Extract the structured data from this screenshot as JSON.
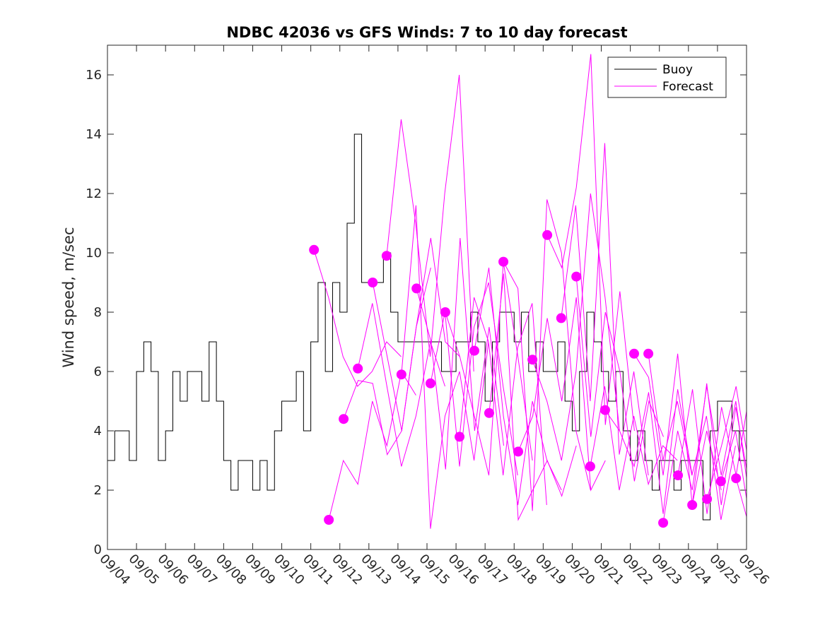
{
  "chart_data": {
    "type": "line",
    "title": "NDBC 42036 vs GFS Winds: 7 to 10 day forecast",
    "xlabel": "",
    "ylabel": "Wind speed, m/sec",
    "x_units": "days since 09/04 00:00",
    "xlim": [
      0,
      22
    ],
    "ylim": [
      0,
      17
    ],
    "yticks": [
      0,
      2,
      4,
      6,
      8,
      10,
      12,
      14,
      16
    ],
    "xtick_labels": [
      "09/04",
      "09/05",
      "09/06",
      "09/07",
      "09/08",
      "09/09",
      "09/10",
      "09/11",
      "09/12",
      "09/13",
      "09/14",
      "09/15",
      "09/16",
      "09/17",
      "09/18",
      "09/19",
      "09/20",
      "09/21",
      "09/22",
      "09/23",
      "09/24",
      "09/25",
      "09/26"
    ],
    "legend": {
      "position": "top-right",
      "entries": [
        "Buoy",
        "Forecast"
      ]
    },
    "colors": {
      "buoy": "#000000",
      "forecast": "#ff00ff"
    },
    "buoy": {
      "step": 0.25,
      "values": [
        3,
        4,
        4,
        3,
        6,
        7,
        6,
        3,
        4,
        6,
        5,
        6,
        6,
        5,
        7,
        5,
        3,
        2,
        3,
        3,
        2,
        3,
        2,
        4,
        5,
        5,
        6,
        4,
        7,
        9,
        6,
        9,
        8,
        11,
        14,
        9,
        9,
        9,
        10,
        8,
        7,
        7,
        7,
        7,
        7,
        7,
        6,
        6,
        7,
        7,
        8,
        7,
        5,
        7,
        8,
        8,
        7,
        8,
        6,
        7,
        6,
        6,
        7,
        5,
        4,
        6,
        8,
        7,
        6,
        5,
        6,
        4,
        3,
        4,
        3,
        2,
        3,
        3,
        2,
        3,
        3,
        3,
        1,
        4,
        5,
        5,
        4,
        3,
        5,
        5,
        3,
        4,
        3,
        2,
        2,
        2,
        1,
        2,
        1,
        2,
        2,
        3,
        2,
        2
      ]
    },
    "forecast_step": 0.5,
    "forecasts": [
      {
        "start": 7.11,
        "values": [
          10.1,
          8.5,
          6.5,
          5.5,
          6.0,
          7.0,
          6.5
        ]
      },
      {
        "start": 7.62,
        "values": [
          1.0,
          3.0,
          2.2,
          5.0,
          3.5,
          6.0,
          5.2
        ]
      },
      {
        "start": 8.13,
        "values": [
          4.4,
          5.7,
          5.6,
          3.2,
          4.0,
          7.5,
          9.5
        ]
      },
      {
        "start": 8.62,
        "values": [
          6.1,
          8.3,
          5.5,
          2.8,
          4.5,
          7.0,
          5.5
        ]
      },
      {
        "start": 9.13,
        "values": [
          9.0,
          6.5,
          4.0,
          7.5,
          10.5,
          7.0,
          6.5
        ]
      },
      {
        "start": 9.61,
        "values": [
          9.9,
          14.5,
          11.0,
          6.5,
          12.0,
          16.0,
          6.0
        ]
      },
      {
        "start": 10.12,
        "values": [
          5.9,
          11.6,
          0.7,
          4.5,
          6.0,
          3.0,
          7.0
        ]
      },
      {
        "start": 10.64,
        "values": [
          8.8,
          7.0,
          2.7,
          10.5,
          4.0,
          7.5,
          3.5
        ]
      },
      {
        "start": 11.12,
        "values": [
          5.6,
          8.0,
          2.8,
          7.5,
          9.0,
          5.5,
          2.5
        ]
      },
      {
        "start": 11.63,
        "values": [
          8.0,
          6.5,
          4.5,
          2.5,
          9.7,
          6.5,
          3.0
        ]
      },
      {
        "start": 12.12,
        "values": [
          3.8,
          8.5,
          7.0,
          2.5,
          6.8,
          8.3,
          1.5
        ]
      },
      {
        "start": 12.63,
        "values": [
          6.7,
          9.5,
          4.5,
          1.5,
          5.0,
          3.0,
          2.0
        ]
      },
      {
        "start": 13.14,
        "values": [
          4.6,
          9.3,
          1.0,
          2.0,
          3.0,
          1.8,
          3.5
        ]
      },
      {
        "start": 13.63,
        "values": [
          9.7,
          8.8,
          1.3,
          11.8,
          10.0,
          4.0,
          2.0
        ]
      },
      {
        "start": 14.14,
        "values": [
          3.3,
          4.5,
          7.8,
          5.0,
          8.5,
          2.0,
          3.0
        ]
      },
      {
        "start": 14.63,
        "values": [
          6.4,
          5.0,
          3.0,
          6.0,
          12.0,
          8.5,
          4.0
        ]
      },
      {
        "start": 15.14,
        "values": [
          10.6,
          9.5,
          12.2,
          16.7,
          4.2,
          8.7,
          4.0
        ]
      },
      {
        "start": 15.62,
        "values": [
          7.8,
          11.6,
          5.0,
          13.7,
          3.2,
          6.0,
          2.5
        ]
      },
      {
        "start": 16.14,
        "values": [
          9.2,
          3.8,
          8.0,
          6.0,
          2.3,
          5.0,
          3.8
        ]
      },
      {
        "start": 16.62,
        "values": [
          2.8,
          5.5,
          2.0,
          4.5,
          2.2,
          3.5,
          3.0
        ]
      },
      {
        "start": 17.13,
        "values": [
          4.7,
          4.0,
          2.8,
          5.3,
          1.2,
          5.4,
          2.5
        ]
      },
      {
        "start": 18.13,
        "values": [
          6.6,
          5.8,
          2.5,
          6.6,
          1.5,
          4.0,
          2.0
        ]
      },
      {
        "start": 18.62,
        "values": [
          6.6,
          3.0,
          5.0,
          2.5,
          4.5,
          1.0,
          3.5
        ]
      },
      {
        "start": 19.13,
        "values": [
          0.9,
          4.0,
          2.0,
          5.5,
          2.5,
          5.0,
          1.5
        ]
      },
      {
        "start": 19.64,
        "values": [
          2.5,
          5.4,
          1.2,
          4.8,
          2.5,
          5.5,
          1.0
        ]
      },
      {
        "start": 20.13,
        "values": [
          1.5,
          5.6,
          1.5,
          4.8,
          2.0,
          5.9,
          0.8
        ]
      },
      {
        "start": 20.64,
        "values": [
          1.7,
          3.5,
          5.5,
          2.5,
          6.0,
          1.0,
          4.4
        ]
      },
      {
        "start": 21.12,
        "values": [
          2.3,
          4.0,
          1.0,
          6.0,
          2.0
        ]
      },
      {
        "start": 21.64,
        "values": [
          2.4,
          0.6,
          4.4
        ]
      }
    ]
  }
}
